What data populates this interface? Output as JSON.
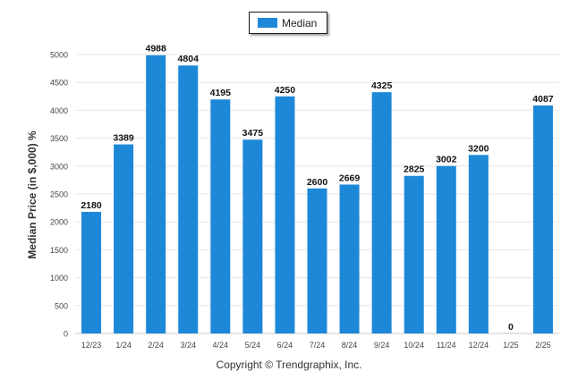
{
  "chart_data": {
    "type": "bar",
    "categories": [
      "12/23",
      "1/24",
      "2/24",
      "3/24",
      "4/24",
      "5/24",
      "6/24",
      "7/24",
      "8/24",
      "9/24",
      "10/24",
      "11/24",
      "12/24",
      "1/25",
      "2/25"
    ],
    "series": [
      {
        "name": "Median",
        "values": [
          2180,
          3389,
          4988,
          4804,
          4195,
          3475,
          4250,
          2600,
          2669,
          4325,
          2825,
          3002,
          3200,
          0,
          4087
        ]
      }
    ],
    "title": "",
    "xlabel": "",
    "ylabel": "Median Price (in $,000) %",
    "ylim": [
      0,
      5000
    ],
    "yticks": [
      0,
      500,
      1000,
      1500,
      2000,
      2500,
      3000,
      3500,
      4000,
      4500,
      5000
    ],
    "grid": true,
    "legend_position": "top-center",
    "bar_color": "#1e88d8"
  },
  "footer": {
    "copyright": "Copyright © Trendgraphix, Inc."
  }
}
